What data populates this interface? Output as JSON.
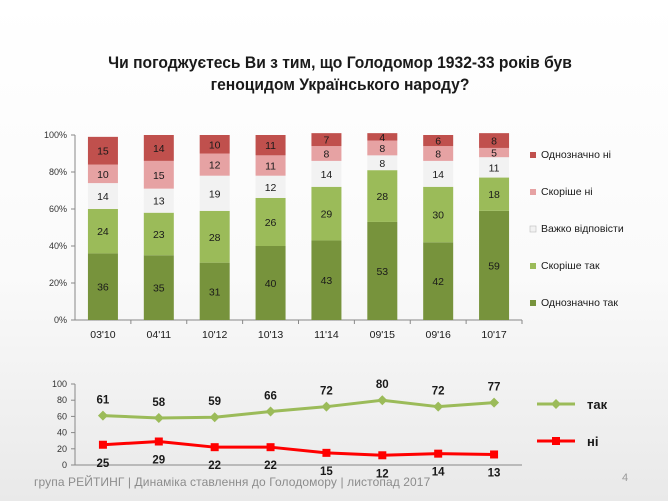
{
  "title": {
    "line1": "Чи погоджуєтесь Ви з тим, що Голодомор 1932-33 років був",
    "line2": "геноцидом Українського народу?"
  },
  "chart_data": [
    {
      "type": "bar",
      "stacked": true,
      "percent": true,
      "categories": [
        "03'10",
        "04'11",
        "10'12",
        "10'13",
        "11'14",
        "09'15",
        "09'16",
        "10'17"
      ],
      "yticks": [
        "0%",
        "20%",
        "40%",
        "60%",
        "80%",
        "100%"
      ],
      "ylim": [
        0,
        100
      ],
      "legend_position": "right",
      "series": [
        {
          "name": "Однозначно так",
          "color": "#77933c",
          "values": [
            36,
            35,
            31,
            40,
            43,
            53,
            42,
            59
          ]
        },
        {
          "name": "Скоріше так",
          "color": "#9bbb59",
          "values": [
            24,
            23,
            28,
            26,
            29,
            28,
            30,
            18
          ]
        },
        {
          "name": "Важко відповісти",
          "color": "#f2f2f2",
          "values": [
            14,
            13,
            19,
            12,
            14,
            8,
            14,
            11
          ]
        },
        {
          "name": "Скоріше ні",
          "color": "#e6a2a3",
          "values": [
            10,
            15,
            12,
            11,
            8,
            8,
            8,
            5
          ]
        },
        {
          "name": "Однозначно ні",
          "color": "#c0504d",
          "values": [
            15,
            14,
            10,
            11,
            7,
            4,
            6,
            8
          ]
        }
      ]
    },
    {
      "type": "line",
      "ylim": [
        0,
        100
      ],
      "yticks": [
        "0",
        "20",
        "40",
        "60",
        "80",
        "100"
      ],
      "legend_position": "right",
      "series": [
        {
          "name": "так",
          "color": "#9bbb59",
          "values": [
            61,
            58,
            59,
            66,
            72,
            80,
            72,
            77
          ]
        },
        {
          "name": "ні",
          "color": "#ff0000",
          "values": [
            25,
            29,
            22,
            22,
            15,
            12,
            14,
            13
          ]
        }
      ]
    }
  ],
  "footer": {
    "text": "група РЕЙТИНГ  |  Динаміка ставлення до Голодомору  | листопад 2017",
    "page": "4"
  }
}
